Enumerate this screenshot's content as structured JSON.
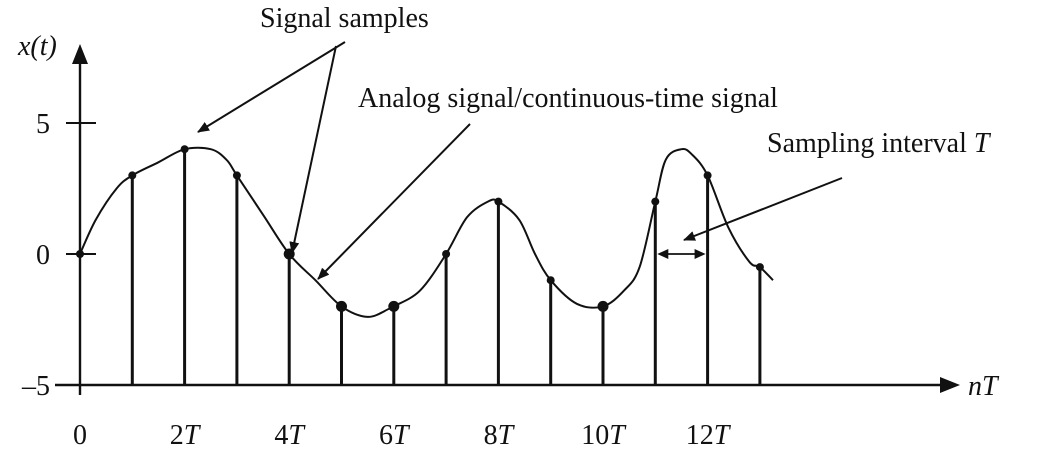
{
  "figure": {
    "y_axis_title": "x(t)",
    "x_axis_title": "nT",
    "annotations": {
      "signal_samples": "Signal samples",
      "analog_signal": "Analog signal/continuous-time signal",
      "sampling_interval": "Sampling interval ",
      "sampling_interval_symbol": "T"
    }
  },
  "chart_data": {
    "type": "stem",
    "x_unit": "T",
    "xlim": [
      0,
      13
    ],
    "ylim": [
      -5,
      5
    ],
    "x_ticks": [
      {
        "value": 0,
        "label": "0"
      },
      {
        "value": 2,
        "label": "2T"
      },
      {
        "value": 4,
        "label": "4T"
      },
      {
        "value": 6,
        "label": "6T"
      },
      {
        "value": 8,
        "label": "8T"
      },
      {
        "value": 10,
        "label": "10T"
      },
      {
        "value": 12,
        "label": "12T"
      }
    ],
    "y_ticks": [
      {
        "value": 5,
        "label": "5"
      },
      {
        "value": 0,
        "label": "0"
      },
      {
        "value": -5,
        "label": "–5"
      }
    ],
    "samples": {
      "n": [
        0,
        1,
        2,
        3,
        4,
        5,
        6,
        7,
        8,
        9,
        10,
        11,
        12,
        13
      ],
      "x": [
        0,
        3,
        4,
        3,
        0,
        -2,
        -2,
        0,
        2,
        -1,
        -2,
        2,
        3,
        -0.5
      ]
    },
    "continuous_signal": {
      "t": [
        0,
        0.3,
        0.7,
        1,
        1.5,
        2,
        2.5,
        2.8,
        3,
        3.5,
        4,
        4.5,
        5,
        5.5,
        5.9,
        6,
        6.5,
        7,
        7.4,
        7.8,
        8,
        8.4,
        8.7,
        9,
        9.5,
        10,
        10.4,
        10.7,
        11,
        11.2,
        11.5,
        11.7,
        12,
        12.4,
        12.8,
        13,
        13.25
      ],
      "x": [
        0,
        1.3,
        2.5,
        3,
        3.5,
        4,
        4,
        3.6,
        3,
        1.5,
        0,
        -1,
        -2,
        -2.4,
        -2.1,
        -2,
        -1.4,
        0,
        1.4,
        2,
        2,
        1.3,
        0,
        -1,
        -1.9,
        -2,
        -1.4,
        -0.5,
        2,
        3.6,
        4,
        3.8,
        3,
        1,
        -0.3,
        -0.5,
        -1
      ]
    },
    "annotated_interval_n": [
      11,
      12
    ]
  }
}
